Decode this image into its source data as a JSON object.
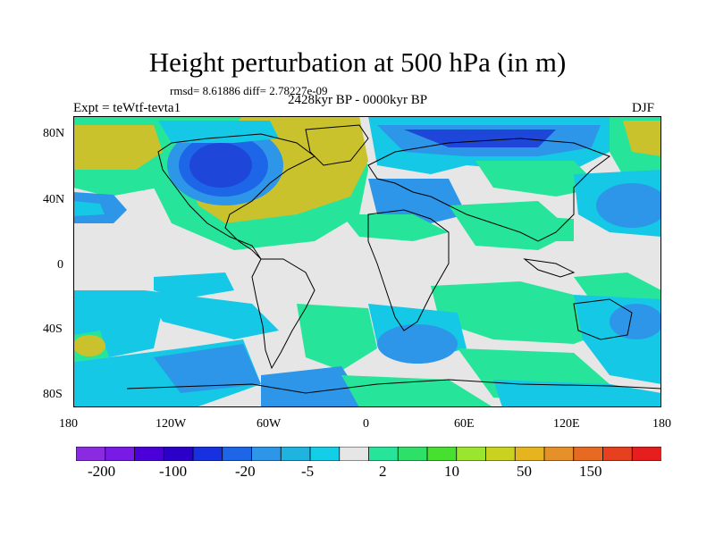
{
  "title": "Height perturbation at 500 hPa (in m)",
  "stats": "rmsd= 8.61886 diff= 2.78227e-09",
  "period": "2428kyr BP - 0000kyr BP",
  "experiment": "Expt = teWtf-tevta1",
  "season": "DJF",
  "y_ticks": [
    "80N",
    "40N",
    "0",
    "40S",
    "80S"
  ],
  "x_ticks": [
    "180",
    "120W",
    "60W",
    "0",
    "60E",
    "120E",
    "180"
  ],
  "colorbar": {
    "colors": [
      "#8A2BE2",
      "#7A1AE6",
      "#4B00D9",
      "#2B00C8",
      "#1730E0",
      "#1E66E8",
      "#2D96E8",
      "#1FB3E0",
      "#14CDE6",
      "#E6E6E6",
      "#26E59A",
      "#2EE067",
      "#47E030",
      "#9CE52E",
      "#C9D21F",
      "#E6B41E",
      "#E6902A",
      "#E66A22",
      "#E6401E",
      "#E61E1E"
    ],
    "labels": [
      "-200",
      "-100",
      "-20",
      "-5",
      "2",
      "10",
      "50",
      "150"
    ]
  },
  "legend_colors": {
    "neutral": "#E6E6E6",
    "deep_blue": "#1E46D8",
    "mid_blue": "#2D96E8",
    "light_blue": "#14C8E6",
    "green": "#26E59A",
    "yellow_green": "#B4D23A",
    "olive": "#C9C22C"
  }
}
